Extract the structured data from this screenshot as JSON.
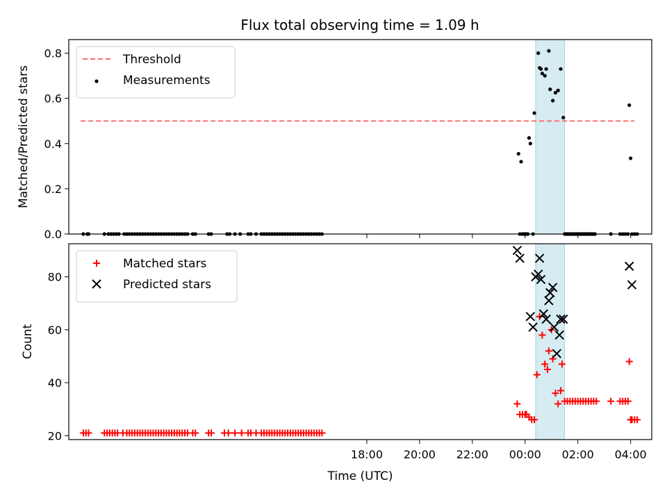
{
  "figure": {
    "title": "Flux total observing time = 1.09 h"
  },
  "chart_data": [
    {
      "type": "scatter",
      "ylabel": "Matched/Predicted stars",
      "xlabel": "",
      "ylim": [
        0.0,
        0.86
      ],
      "xlim": [
        -17.3,
        4.8
      ],
      "yticks": [
        0.0,
        0.2,
        0.4,
        0.6,
        0.8
      ],
      "ytick_labels": [
        "0.0",
        "0.2",
        "0.4",
        "0.6",
        "0.8"
      ],
      "xticks": [
        -6,
        -4,
        -2,
        0,
        2,
        4
      ],
      "grid": false,
      "legend_position": "top-left",
      "shaded_interval": {
        "x0": 0.4,
        "x1": 1.49,
        "color": "#add8e6"
      },
      "threshold": {
        "name": "Threshold",
        "y": 0.5,
        "x0": -16.85,
        "x1": 4.15,
        "color": "#ff7070",
        "style": "dashed"
      },
      "series": [
        {
          "name": "Measurements",
          "color": "#000000",
          "marker": "dot",
          "x": [
            -16.75,
            -16.6,
            -16.55,
            -15.95,
            -15.8,
            -15.7,
            -15.6,
            -15.5,
            -15.4,
            -15.2,
            -15.1,
            -15.0,
            -14.9,
            -14.8,
            -14.7,
            -14.6,
            -14.5,
            -14.4,
            -14.3,
            -14.2,
            -14.1,
            -14.0,
            -13.9,
            -13.8,
            -13.7,
            -13.6,
            -13.5,
            -13.4,
            -13.3,
            -13.2,
            -13.1,
            -13.0,
            -12.9,
            -12.8,
            -12.6,
            -12.5,
            -12.0,
            -11.9,
            -11.3,
            -11.2,
            -11.0,
            -10.8,
            -10.5,
            -10.4,
            -10.2,
            -10.0,
            -9.9,
            -9.8,
            -9.7,
            -9.6,
            -9.5,
            -9.4,
            -9.3,
            -9.2,
            -9.1,
            -9.0,
            -8.9,
            -8.8,
            -8.7,
            -8.6,
            -8.5,
            -8.4,
            -8.3,
            -8.2,
            -8.1,
            -8.0,
            -7.9,
            -7.8,
            -7.7,
            -0.25,
            -0.15,
            -0.1,
            0.0,
            0.1,
            0.2,
            0.3,
            0.5,
            0.55,
            0.6,
            0.65,
            0.75,
            0.8,
            0.9,
            0.95,
            1.05,
            1.15,
            1.25,
            1.35,
            1.45,
            1.5,
            1.55,
            1.65,
            1.75,
            1.85,
            1.95,
            2.05,
            2.15,
            2.25,
            2.35,
            2.45,
            2.55,
            2.65,
            3.25,
            3.6,
            3.7,
            3.8,
            3.9,
            3.95,
            4.0,
            4.05,
            4.15,
            4.25
          ],
          "y": [
            0,
            0,
            0,
            0,
            0,
            0,
            0,
            0,
            0,
            0,
            0,
            0,
            0,
            0,
            0,
            0,
            0,
            0,
            0,
            0,
            0,
            0,
            0,
            0,
            0,
            0,
            0,
            0,
            0,
            0,
            0,
            0,
            0,
            0,
            0,
            0,
            0,
            0,
            0,
            0,
            0,
            0,
            0,
            0,
            0,
            0,
            0,
            0,
            0,
            0,
            0,
            0,
            0,
            0,
            0,
            0,
            0,
            0,
            0,
            0,
            0,
            0,
            0,
            0,
            0,
            0,
            0,
            0,
            0,
            0.355,
            0.32,
            0,
            0,
            0,
            0.4,
            0,
            0.8,
            0.735,
            0.73,
            0.71,
            0.7,
            0.73,
            0.81,
            0.64,
            0.59,
            0.625,
            0.635,
            0.73,
            0.515,
            0,
            0,
            0,
            0,
            0,
            0,
            0,
            0,
            0,
            0,
            0,
            0,
            0,
            0,
            0,
            0,
            0,
            0,
            0.57,
            0.335,
            0,
            0,
            0
          ],
          "extra_points": [
            [
              0.15,
              0.425
            ],
            [
              0.35,
              0.535
            ],
            [
              -0.2,
              0.0
            ],
            [
              0.05,
              0.0
            ],
            [
              -0.05,
              0.0
            ],
            [
              1.55,
              0.0
            ],
            [
              1.6,
              0.0
            ],
            [
              1.7,
              0.0
            ],
            [
              1.8,
              0.0
            ],
            [
              1.9,
              0.0
            ],
            [
              2.0,
              0.0
            ],
            [
              2.1,
              0.0
            ],
            [
              2.2,
              0.0
            ],
            [
              2.3,
              0.0
            ],
            [
              2.4,
              0.0
            ],
            [
              2.5,
              0.0
            ],
            [
              2.6,
              0.0
            ]
          ]
        }
      ]
    },
    {
      "type": "scatter",
      "ylabel": "Count",
      "xlabel": "Time (UTC)",
      "ylim": [
        18.5,
        92.5
      ],
      "xlim": [
        -17.3,
        4.8
      ],
      "yticks": [
        20,
        40,
        60,
        80
      ],
      "ytick_labels": [
        "20",
        "40",
        "60",
        "80"
      ],
      "xticks": [
        -6,
        -4,
        -2,
        0,
        2,
        4
      ],
      "xtick_labels": [
        "18:00",
        "20:00",
        "22:00",
        "00:00",
        "02:00",
        "04:00"
      ],
      "grid": false,
      "legend_position": "top-left",
      "shaded_interval": {
        "x0": 0.4,
        "x1": 1.49,
        "color": "#add8e6"
      },
      "series": [
        {
          "name": "Matched stars",
          "color": "#ff0000",
          "marker": "plus",
          "x": [
            -16.75,
            -16.65,
            -16.55,
            -15.95,
            -15.85,
            -15.75,
            -15.65,
            -15.55,
            -15.45,
            -15.25,
            -15.1,
            -15.0,
            -14.9,
            -14.8,
            -14.7,
            -14.6,
            -14.5,
            -14.4,
            -14.3,
            -14.2,
            -14.1,
            -14.0,
            -13.9,
            -13.8,
            -13.7,
            -13.6,
            -13.5,
            -13.4,
            -13.3,
            -13.2,
            -13.1,
            -13.0,
            -12.9,
            -12.8,
            -12.6,
            -12.5,
            -12.0,
            -11.9,
            -11.4,
            -11.25,
            -11.0,
            -10.75,
            -10.5,
            -10.4,
            -10.2,
            -10.0,
            -9.9,
            -9.8,
            -9.7,
            -9.6,
            -9.5,
            -9.4,
            -9.3,
            -9.2,
            -9.1,
            -9.0,
            -8.9,
            -8.8,
            -8.7,
            -8.6,
            -8.5,
            -8.4,
            -8.3,
            -8.2,
            -8.1,
            -8.0,
            -7.9,
            -7.8,
            -7.7,
            -0.3,
            -0.2,
            -0.1,
            0.0,
            0.05,
            0.15,
            0.25,
            0.35,
            0.45,
            0.55,
            0.65,
            0.75,
            0.85,
            0.9,
            1.0,
            1.05,
            1.15,
            1.25,
            1.35,
            1.4,
            1.5,
            1.6,
            1.7,
            1.8,
            1.9,
            2.0,
            2.1,
            2.2,
            2.3,
            2.4,
            2.5,
            2.6,
            2.7,
            3.25,
            3.6,
            3.7,
            3.8,
            3.9,
            3.95,
            4.0,
            4.05,
            4.15,
            4.25
          ],
          "y": [
            21,
            21,
            21,
            21,
            21,
            21,
            21,
            21,
            21,
            21,
            21,
            21,
            21,
            21,
            21,
            21,
            21,
            21,
            21,
            21,
            21,
            21,
            21,
            21,
            21,
            21,
            21,
            21,
            21,
            21,
            21,
            21,
            21,
            21,
            21,
            21,
            21,
            21,
            21,
            21,
            21,
            21,
            21,
            21,
            21,
            21,
            21,
            21,
            21,
            21,
            21,
            21,
            21,
            21,
            21,
            21,
            21,
            21,
            21,
            21,
            21,
            21,
            21,
            21,
            21,
            21,
            21,
            21,
            21,
            32,
            28,
            28,
            28,
            28,
            27,
            26,
            26,
            43,
            65,
            58,
            47,
            45,
            52,
            60,
            49,
            36,
            32,
            37,
            47,
            33,
            33,
            33,
            33,
            33,
            33,
            33,
            33,
            33,
            33,
            33,
            33,
            33,
            33,
            33,
            33,
            33,
            33,
            48,
            26,
            26,
            26,
            26
          ]
        },
        {
          "name": "Predicted stars",
          "color": "#000000",
          "marker": "x",
          "x": [
            -0.3,
            -0.2,
            0.2,
            0.3,
            0.4,
            0.5,
            0.55,
            0.6,
            0.7,
            0.8,
            0.9,
            0.95,
            1.05,
            1.1,
            1.2,
            1.3,
            1.35,
            1.45,
            3.95,
            4.05
          ],
          "y": [
            90,
            87,
            65,
            61,
            80,
            81,
            87,
            79,
            66,
            64,
            71,
            74,
            76,
            61,
            51,
            58,
            64,
            64,
            84,
            77
          ]
        }
      ]
    }
  ]
}
